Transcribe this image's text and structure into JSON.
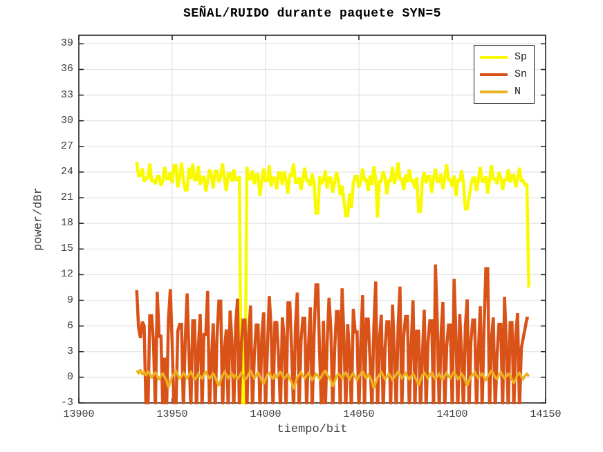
{
  "chart_data": {
    "type": "line",
    "title": "SEÑAL/RUIDO durante paquete SYN=5",
    "xlabel": "tiempo/bit",
    "ylabel": "power/dBr",
    "xlim": [
      13900,
      14150
    ],
    "ylim": [
      -3,
      40
    ],
    "xticks": [
      13900,
      13950,
      14000,
      14050,
      14100,
      14150
    ],
    "yticks": [
      -3,
      0,
      3,
      6,
      9,
      12,
      15,
      18,
      21,
      24,
      27,
      30,
      33,
      36,
      39
    ],
    "grid": true,
    "legend_position": "top-right",
    "x_start": 13931,
    "x_step": 1,
    "series": [
      {
        "name": "Sp",
        "color": "#f9f900",
        "line_width": 4.5,
        "values": [
          25.2,
          23.6,
          23.6,
          24.4,
          22.9,
          23.3,
          23.3,
          25.0,
          23.0,
          23.0,
          22.6,
          23.5,
          23.5,
          22.4,
          23.0,
          24.6,
          23.2,
          23.2,
          24.0,
          22.7,
          24.8,
          24.8,
          22.2,
          23.4,
          25.1,
          23.0,
          21.9,
          21.9,
          24.5,
          23.2,
          25.0,
          23.1,
          23.1,
          24.7,
          22.5,
          23.4,
          23.4,
          21.7,
          23.0,
          24.3,
          23.6,
          22.1,
          24.1,
          24.1,
          22.8,
          23.5,
          25.0,
          23.2,
          21.8,
          23.8,
          23.8,
          22.9,
          24.3,
          23.1,
          23.1,
          23.5,
          -4.0,
          6.2,
          -4.0,
          24.6,
          23.2,
          23.2,
          24.2,
          22.6,
          23.7,
          23.7,
          21.2,
          22.9,
          24.4,
          23.0,
          23.0,
          24.8,
          22.3,
          23.3,
          23.3,
          22.0,
          23.9,
          23.9,
          22.5,
          24.1,
          23.1,
          21.5,
          23.6,
          23.6,
          25.0,
          22.8,
          22.8,
          23.4,
          21.9,
          23.2,
          24.5,
          23.0,
          23.0,
          22.4,
          23.8,
          22.7,
          19.2,
          19.2,
          23.5,
          22.6,
          23.0,
          24.2,
          22.1,
          23.3,
          23.3,
          21.6,
          22.8,
          24.0,
          23.1,
          21.3,
          22.4,
          20.6,
          18.9,
          18.9,
          21.5,
          19.8,
          22.7,
          23.5,
          23.5,
          22.2,
          23.0,
          24.4,
          23.1,
          23.1,
          21.8,
          23.6,
          22.5,
          24.7,
          23.2,
          18.7,
          22.9,
          22.9,
          24.1,
          23.3,
          21.4,
          23.0,
          23.0,
          24.6,
          22.6,
          23.4,
          25.1,
          23.2,
          23.2,
          21.9,
          23.7,
          22.8,
          24.3,
          23.0,
          23.0,
          22.1,
          23.4,
          19.4,
          19.4,
          23.1,
          24.0,
          22.7,
          23.5,
          23.5,
          21.6,
          23.2,
          24.4,
          22.9,
          22.9,
          23.8,
          22.0,
          23.3,
          24.9,
          23.1,
          23.1,
          22.3,
          23.6,
          21.2,
          23.0,
          23.0,
          24.2,
          22.7,
          19.7,
          19.7,
          21.0,
          22.4,
          23.3,
          23.3,
          21.8,
          23.1,
          24.6,
          22.9,
          22.9,
          23.5,
          21.5,
          23.0,
          24.8,
          23.2,
          23.2,
          22.6,
          24.0,
          23.4,
          21.9,
          23.1,
          23.1,
          24.3,
          22.8,
          23.6,
          23.6,
          22.2,
          23.2,
          24.5,
          23.0,
          23.0,
          22.5,
          22.5,
          10.5
        ]
      },
      {
        "name": "Sn",
        "color": "#d95319",
        "line_width": 4.5,
        "values": [
          10.2,
          5.8,
          4.6,
          6.5,
          6.0,
          -4,
          -4,
          7.2,
          7.2,
          4.1,
          -4,
          10.0,
          4.8,
          4.8,
          -4,
          2.3,
          -4,
          6.8,
          10.3,
          3.9,
          -4,
          -4,
          5.4,
          6.2,
          6.2,
          -4,
          4.4,
          9.8,
          2.8,
          -4,
          6.6,
          6.6,
          -4,
          3.5,
          7.4,
          -4,
          5.0,
          5.0,
          10.1,
          -4,
          2.0,
          6.3,
          -4,
          4.7,
          8.9,
          8.9,
          -4,
          3.2,
          5.6,
          -4,
          7.8,
          4.2,
          -4,
          6.0,
          9.2,
          -4,
          3.8,
          6.7,
          6.7,
          -4,
          5.2,
          8.4,
          -4,
          2.6,
          6.1,
          6.1,
          -4,
          4.9,
          7.6,
          -4,
          3.4,
          9.5,
          5.7,
          -4,
          6.4,
          6.4,
          2.2,
          -4,
          7.0,
          4.5,
          -4,
          8.7,
          8.7,
          3.0,
          -4,
          5.9,
          9.9,
          -4,
          4.3,
          6.9,
          6.9,
          -4,
          3.6,
          8.2,
          -4,
          5.1,
          10.8,
          10.8,
          2.4,
          -4,
          6.6,
          -4,
          4.0,
          9.3,
          5.5,
          -4,
          3.1,
          7.7,
          7.7,
          -4,
          10.4,
          4.6,
          -4,
          6.2,
          2.7,
          -4,
          8.0,
          5.3,
          5.3,
          -4,
          3.9,
          9.6,
          -4,
          6.8,
          6.8,
          1.9,
          -4,
          5.8,
          11.2,
          -4,
          4.4,
          7.3,
          -4,
          3.3,
          6.5,
          6.5,
          -4,
          8.5,
          2.9,
          -4,
          6.0,
          10.6,
          -4,
          4.8,
          7.1,
          7.1,
          -4,
          3.7,
          9.0,
          -4,
          5.4,
          5.4,
          -4,
          2.5,
          7.9,
          -4,
          4.1,
          6.6,
          6.6,
          -4,
          13.2,
          6.3,
          -4,
          5.0,
          8.8,
          -4,
          3.5,
          6.1,
          6.1,
          -4,
          11.5,
          4.7,
          -4,
          7.4,
          2.8,
          -4,
          5.9,
          9.1,
          -4,
          4.2,
          6.7,
          6.7,
          -4,
          3.0,
          8.3,
          -4,
          5.6,
          12.7,
          12.7,
          -4,
          4.5,
          7.0,
          -4,
          2.6,
          6.2,
          6.2,
          -4,
          9.4,
          3.8,
          -4,
          6.4,
          6.4,
          -4,
          4.9,
          7.5,
          -4,
          3.4,
          4.6,
          5.7,
          6.9,
          6.9
        ]
      },
      {
        "name": "N",
        "color": "#edb120",
        "line_width": 3.5,
        "values": [
          0.8,
          0.5,
          0.9,
          0.3,
          0.6,
          0.2,
          0.7,
          0.4,
          -0.1,
          0.3,
          0.6,
          0.1,
          -0.3,
          0.2,
          0.5,
          0.0,
          -0.4,
          -1.2,
          -0.5,
          0.1,
          0.4,
          0.7,
          0.3,
          -0.2,
          0.1,
          0.5,
          0.2,
          -0.1,
          0.3,
          0.6,
          0.2,
          -0.3,
          0.0,
          0.4,
          0.1,
          -0.2,
          0.3,
          0.7,
          0.2,
          -0.1,
          0.1,
          0.5,
          0.0,
          -0.5,
          -1.0,
          -0.3,
          0.2,
          0.6,
          0.3,
          -0.1,
          0.2,
          0.4,
          0.0,
          0.3,
          -0.2,
          0.1,
          0.5,
          0.2,
          -0.3,
          0.0,
          0.4,
          0.8,
          0.3,
          -0.1,
          0.2,
          0.6,
          0.1,
          -0.4,
          -0.8,
          -0.2,
          0.3,
          0.5,
          0.1,
          -0.2,
          0.4,
          0.0,
          0.3,
          0.7,
          0.2,
          -0.1,
          0.1,
          0.4,
          -0.2,
          -0.6,
          -1.4,
          -0.7,
          0.0,
          0.3,
          0.6,
          0.2,
          -0.1,
          0.2,
          0.5,
          0.1,
          -0.3,
          0.0,
          0.4,
          0.2,
          -0.2,
          0.1,
          0.5,
          0.8,
          0.3,
          0.0,
          -0.4,
          -1.1,
          -0.5,
          0.1,
          0.4,
          0.2,
          -0.1,
          0.3,
          0.6,
          0.1,
          -0.2,
          0.2,
          0.5,
          0.0,
          -0.3,
          0.1,
          0.4,
          0.7,
          0.2,
          -0.1,
          0.3,
          0.0,
          -0.5,
          -1.3,
          -0.6,
          0.0,
          0.3,
          0.6,
          0.2,
          -0.2,
          0.1,
          0.4,
          0.1,
          -0.3,
          0.0,
          0.3,
          0.7,
          0.3,
          -0.1,
          0.2,
          0.5,
          0.1,
          -0.2,
          0.1,
          0.4,
          0.0,
          -0.4,
          -0.9,
          -0.3,
          0.2,
          0.5,
          0.2,
          -0.1,
          0.3,
          0.6,
          0.1,
          -0.2,
          0.1,
          0.4,
          0.0,
          -0.3,
          0.2,
          0.5,
          0.1,
          -0.1,
          0.3,
          0.6,
          0.2,
          -0.2,
          0.0,
          0.4,
          0.1,
          -0.4,
          -1.0,
          -0.4,
          0.1,
          0.3,
          0.6,
          0.2,
          -0.1,
          0.2,
          0.5,
          0.0,
          -0.3,
          0.1,
          0.4,
          0.8,
          0.4,
          0.0,
          -0.2,
          0.3,
          0.6,
          0.2,
          -0.1,
          0.1,
          0.4,
          0.2,
          -0.3,
          -0.7,
          -0.2,
          0.3,
          0.5,
          0.1,
          -0.2,
          0.2,
          0.4,
          0.1
        ]
      }
    ]
  },
  "colors": {
    "background": "#ffffff",
    "grid": "#e2e2e2",
    "axis": "#262626",
    "tick_label": "#3c3c3c",
    "title": "#000000",
    "legend_border": "#1a1a1a"
  }
}
